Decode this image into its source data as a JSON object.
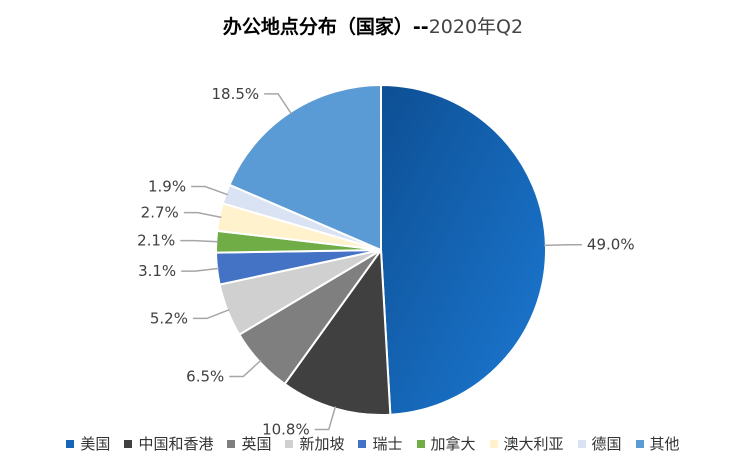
{
  "title": {
    "main": "办公地点分布（国家）--",
    "sub": "2020年Q2"
  },
  "chart_data": {
    "type": "pie",
    "title": "办公地点分布（国家）--2020年Q2",
    "legend_position": "bottom",
    "categories": [
      "美国",
      "中国和香港",
      "英国",
      "新加坡",
      "瑞士",
      "加拿大",
      "澳大利亚",
      "德国",
      "其他"
    ],
    "values": [
      49.0,
      10.8,
      6.5,
      5.2,
      3.1,
      2.1,
      2.7,
      1.9,
      18.5
    ],
    "labels": [
      "49.0%",
      "10.8%",
      "6.5%",
      "5.2%",
      "3.1%",
      "2.1%",
      "2.7%",
      "1.9%",
      "18.5%"
    ],
    "colors": [
      "#1565b8",
      "#404040",
      "#7f7f7f",
      "#d0d0d0",
      "#4472c4",
      "#70ad47",
      "#fff2cc",
      "#dae3f3",
      "#5b9bd5"
    ]
  }
}
